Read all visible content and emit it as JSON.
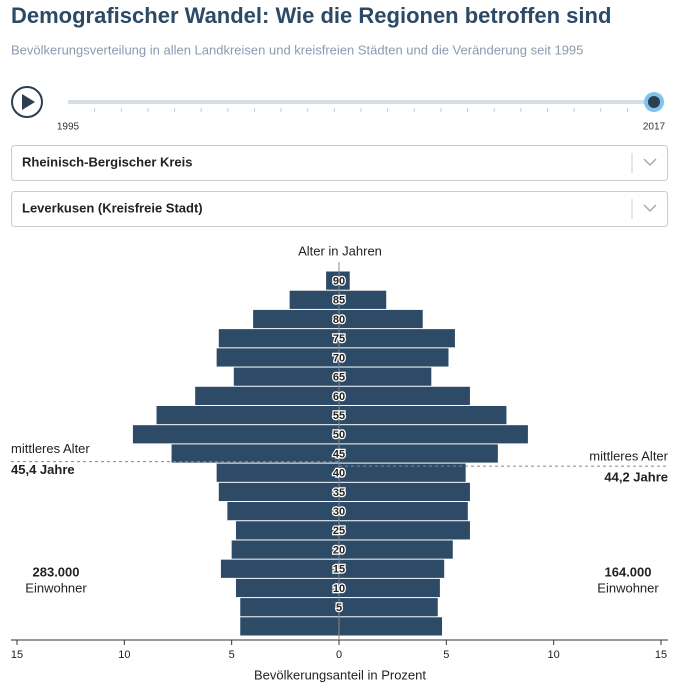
{
  "title": "Demografischer Wandel: Wie die Regionen betroffen sind",
  "subtitle": "Bevölkerungsverteilung in allen Landkreisen und kreisfreien Städten und die Veränderung seit 1995",
  "slider": {
    "start": "1995",
    "end": "2017"
  },
  "chart_data": {
    "type": "pyramid",
    "y_label": "Alter in Jahren",
    "x_label": "Bevölkerungsanteil in Prozent",
    "median_title": "mittleres Alter",
    "population_unit": "Einwohner",
    "categories": [
      null,
      "5",
      "10",
      "15",
      "20",
      "25",
      "30",
      "35",
      "40",
      "45",
      "50",
      "55",
      "60",
      "65",
      "70",
      "75",
      "80",
      "85",
      "90"
    ],
    "series": [
      {
        "name": "Rheinisch-Bergischer Kreis",
        "color": "#2d4a66",
        "side": "left",
        "values": [
          4.6,
          4.6,
          4.8,
          5.5,
          5.0,
          4.8,
          5.2,
          5.6,
          5.7,
          7.8,
          9.6,
          8.5,
          6.7,
          4.9,
          5.7,
          5.6,
          4.0,
          2.3,
          0.6
        ],
        "median_age": 45.4,
        "median_label": "45,4 Jahre",
        "population": 283000,
        "population_label": "283.000"
      },
      {
        "name": "Leverkusen (Kreisfreie Stadt)",
        "color": "#2d4a66",
        "side": "right",
        "values": [
          4.8,
          4.6,
          4.7,
          4.9,
          5.3,
          6.1,
          6.0,
          6.1,
          5.9,
          7.4,
          8.8,
          7.8,
          6.1,
          4.3,
          5.1,
          5.4,
          3.9,
          2.2,
          0.5
        ],
        "median_age": 44.2,
        "median_label": "44,2 Jahre",
        "population": 164000,
        "population_label": "164.000"
      }
    ],
    "xlim": [
      -15,
      15
    ],
    "xticks": [
      {
        "value": -15,
        "label": "15"
      },
      {
        "value": -10,
        "label": "10"
      },
      {
        "value": -5,
        "label": "5"
      },
      0,
      5,
      10,
      15
    ]
  }
}
